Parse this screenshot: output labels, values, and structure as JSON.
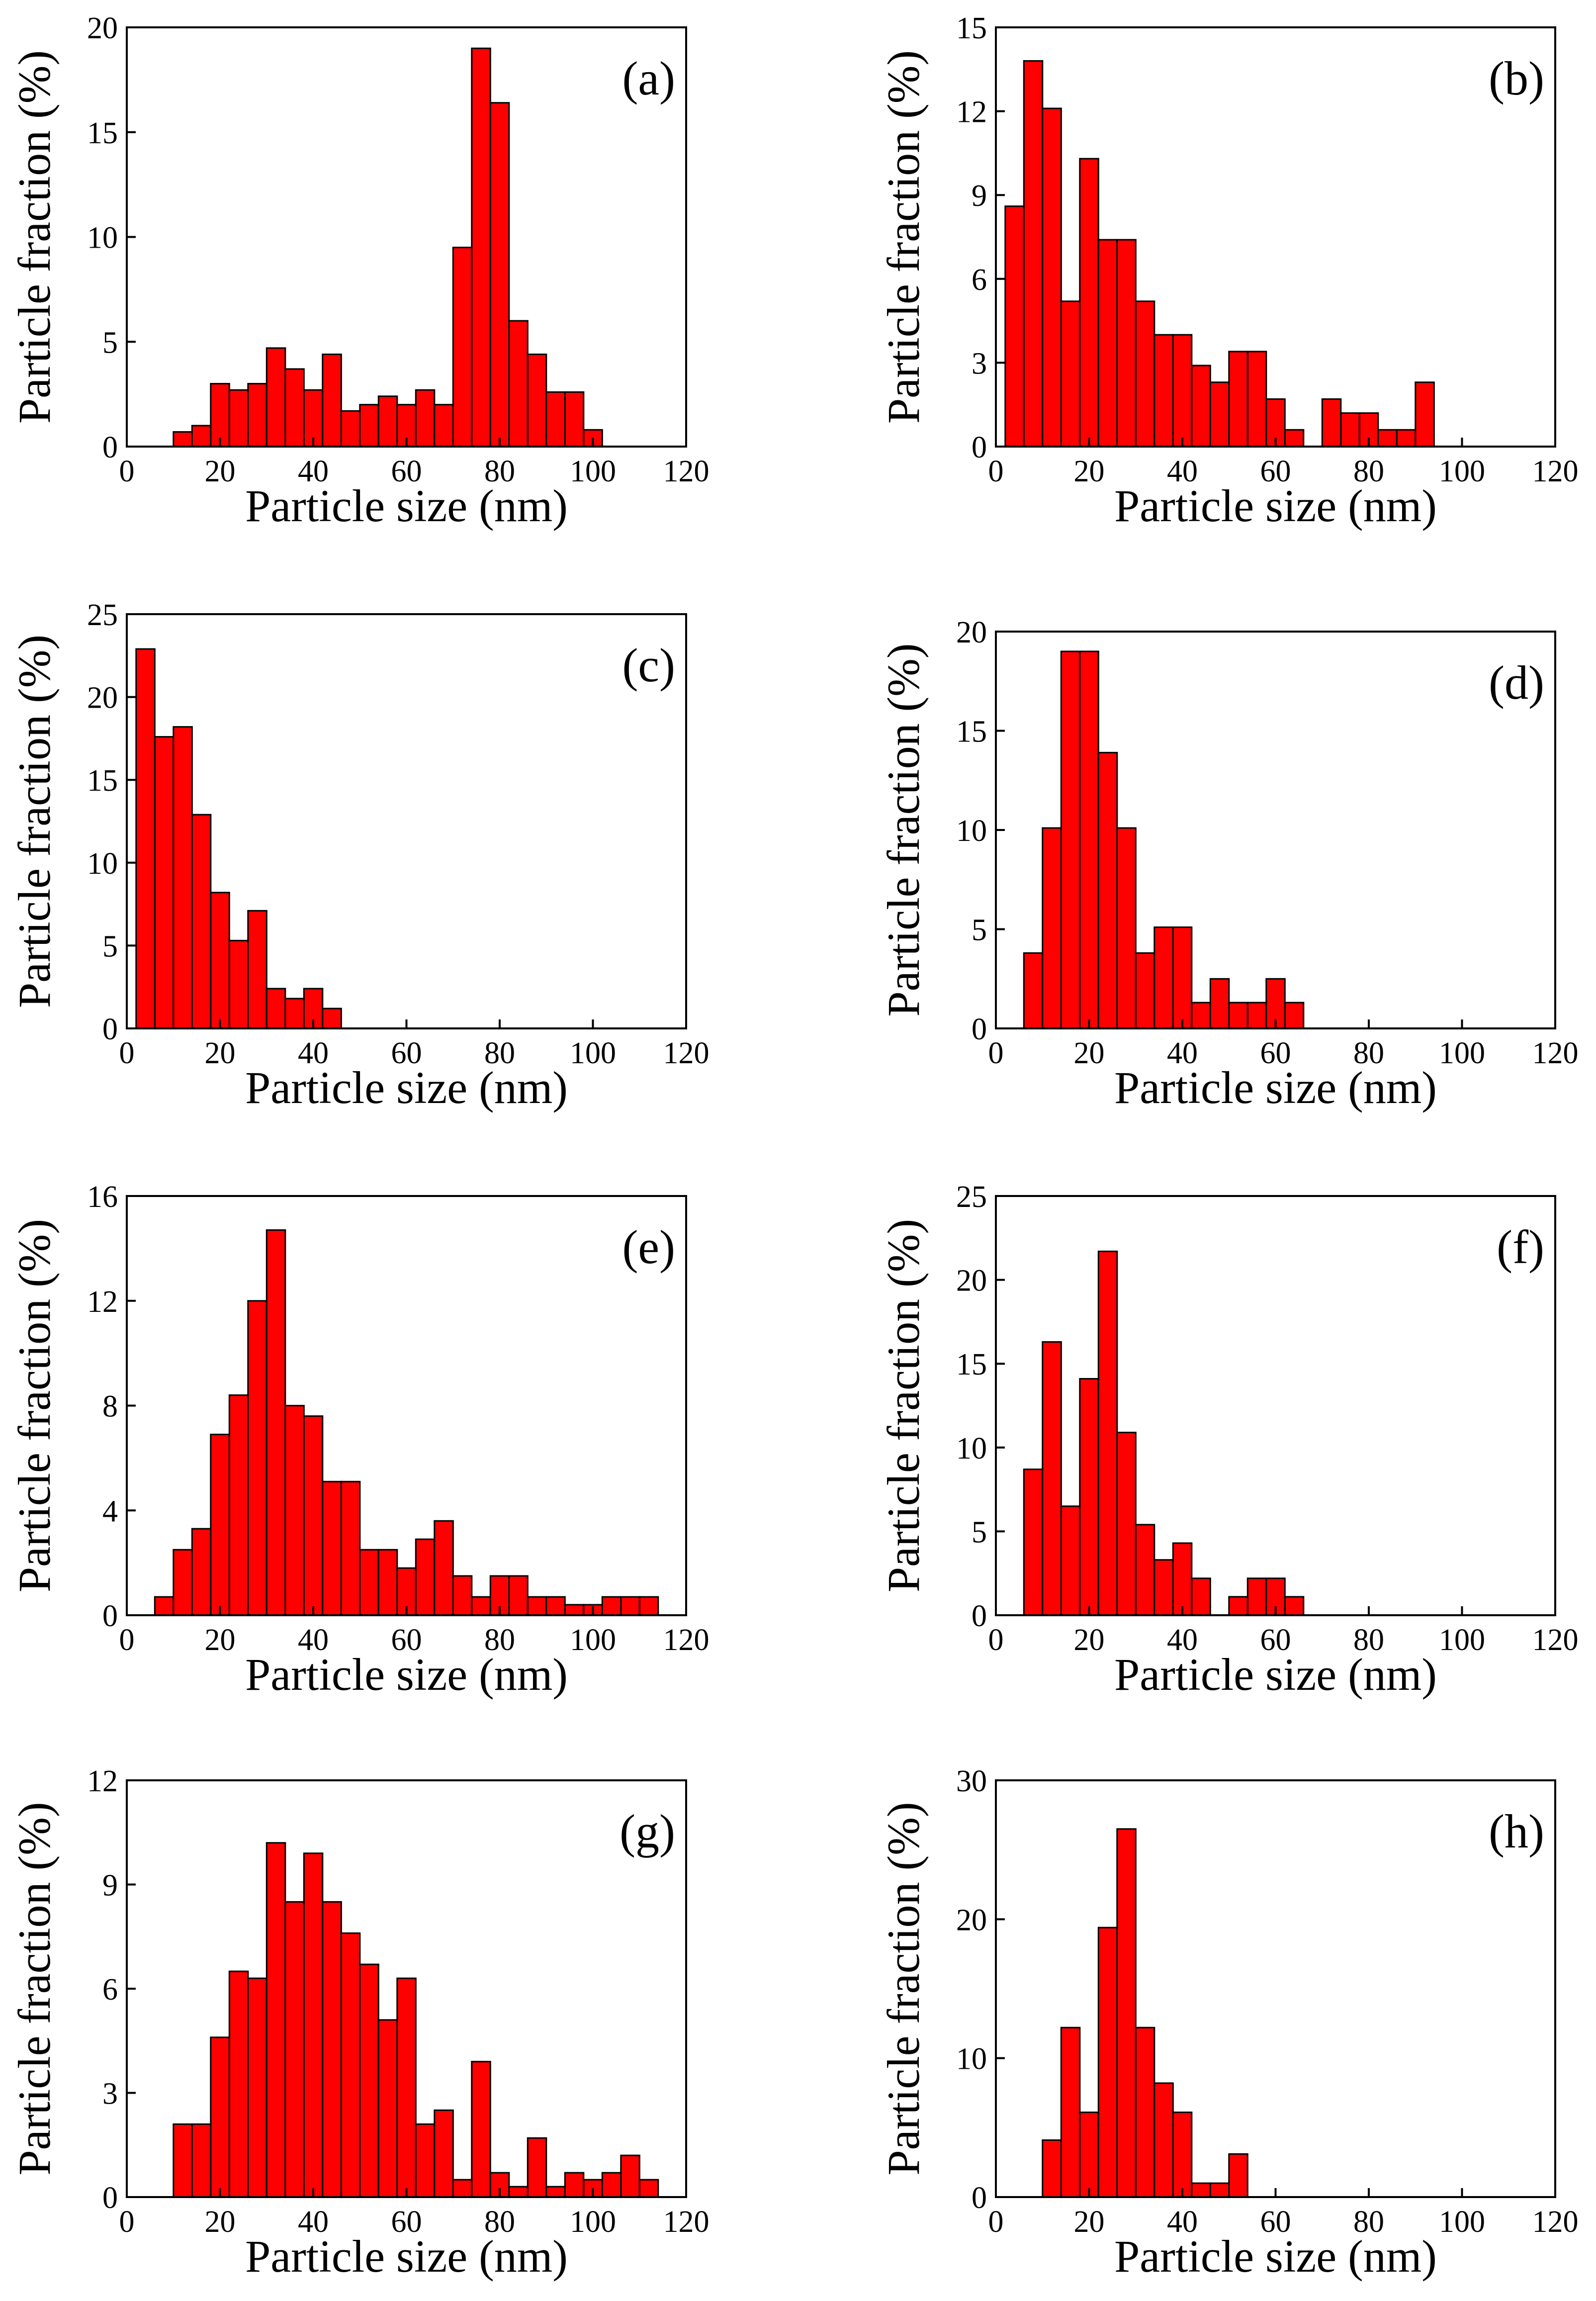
{
  "figure": {
    "colors": {
      "bar_fill": "#ff0000",
      "bar_edge": "#000000",
      "axis": "#000000"
    }
  },
  "chart_data": [
    {
      "type": "bar",
      "panel_label": "(a)",
      "xlabel": "Particle size (nm)",
      "ylabel": "Particle fraction (%)",
      "xlim": [
        0,
        120
      ],
      "ylim": [
        0,
        20
      ],
      "xticks": [
        0,
        20,
        40,
        60,
        80,
        100,
        120
      ],
      "yticks": [
        0,
        5,
        10,
        15,
        20
      ],
      "bin_width": 4,
      "bin_starts": [
        10,
        14,
        18,
        22,
        26,
        30,
        34,
        38,
        42,
        46,
        50,
        54,
        58,
        62,
        66,
        70,
        74,
        78,
        82,
        86,
        90,
        94,
        98
      ],
      "values": [
        0.7,
        1.0,
        3.0,
        2.7,
        3.0,
        4.7,
        3.7,
        2.7,
        4.4,
        1.7,
        2.0,
        2.4,
        2.0,
        2.7,
        2.0,
        9.5,
        19.0,
        16.4,
        6.0,
        4.4,
        2.6,
        2.6,
        0.8
      ]
    },
    {
      "type": "bar",
      "panel_label": "(b)",
      "xlabel": "Particle size (nm)",
      "ylabel": "Particle fraction (%)",
      "xlim": [
        0,
        120
      ],
      "ylim": [
        0,
        15
      ],
      "xticks": [
        0,
        20,
        40,
        60,
        80,
        100,
        120
      ],
      "yticks": [
        0,
        3,
        6,
        9,
        12,
        15
      ],
      "bin_width": 4,
      "bin_starts": [
        2,
        6,
        10,
        14,
        18,
        22,
        26,
        30,
        34,
        38,
        42,
        46,
        50,
        54,
        58,
        62,
        70,
        74,
        78,
        82,
        86,
        90
      ],
      "values": [
        8.6,
        13.8,
        12.1,
        5.2,
        10.3,
        7.4,
        7.4,
        5.2,
        4.0,
        4.0,
        2.9,
        2.3,
        3.4,
        3.4,
        1.7,
        0.6,
        1.7,
        1.2,
        1.2,
        0.6,
        0.6,
        2.3
      ]
    },
    {
      "type": "bar",
      "panel_label": "(c)",
      "xlabel": "Particle size (nm)",
      "ylabel": "Particle fraction (%)",
      "xlim": [
        0,
        120
      ],
      "ylim": [
        0,
        25
      ],
      "xticks": [
        0,
        20,
        40,
        60,
        80,
        100,
        120
      ],
      "yticks": [
        0,
        5,
        10,
        15,
        20,
        25
      ],
      "bin_width": 4,
      "bin_starts": [
        2,
        6,
        10,
        14,
        18,
        22,
        26,
        30,
        34,
        38,
        42
      ],
      "values": [
        22.9,
        17.6,
        18.2,
        12.9,
        8.2,
        5.3,
        7.1,
        2.4,
        1.8,
        2.4,
        1.2
      ]
    },
    {
      "type": "bar",
      "panel_label": "(d)",
      "xlabel": "Particle size (nm)",
      "ylabel": "Particle fraction (%)",
      "xlim": [
        0,
        120
      ],
      "ylim": [
        0,
        20
      ],
      "xticks": [
        0,
        20,
        40,
        60,
        80,
        100,
        120
      ],
      "yticks": [
        0,
        5,
        10,
        15,
        20
      ],
      "bin_width": 4,
      "bin_starts": [
        6,
        10,
        14,
        18,
        22,
        26,
        30,
        34,
        38,
        42,
        46,
        50,
        54,
        58,
        62
      ],
      "values": [
        3.8,
        10.1,
        19.0,
        19.0,
        13.9,
        10.1,
        3.8,
        5.1,
        5.1,
        1.3,
        2.5,
        1.3,
        1.3,
        2.5,
        1.3
      ]
    },
    {
      "type": "bar",
      "panel_label": "(e)",
      "xlabel": "Particle size (nm)",
      "ylabel": "Particle fraction (%)",
      "xlim": [
        0,
        120
      ],
      "ylim": [
        0,
        16
      ],
      "xticks": [
        0,
        20,
        40,
        60,
        80,
        100,
        120
      ],
      "yticks": [
        0,
        4,
        8,
        12,
        16
      ],
      "bin_width": 4,
      "bin_starts": [
        6,
        10,
        14,
        18,
        22,
        26,
        30,
        34,
        38,
        42,
        46,
        50,
        54,
        58,
        62,
        66,
        70,
        74,
        78,
        82,
        86,
        90,
        94,
        98,
        102,
        106,
        110
      ],
      "values": [
        0.7,
        2.5,
        3.3,
        6.9,
        8.4,
        12.0,
        14.7,
        8.0,
        7.6,
        5.1,
        5.1,
        2.5,
        2.5,
        1.8,
        2.9,
        3.6,
        1.5,
        0.7,
        1.5,
        1.5,
        0.7,
        0.7,
        0.4,
        0.4,
        0.7,
        0.7,
        0.7
      ]
    },
    {
      "type": "bar",
      "panel_label": "(f)",
      "xlabel": "Particle size (nm)",
      "ylabel": "Particle fraction (%)",
      "xlim": [
        0,
        120
      ],
      "ylim": [
        0,
        25
      ],
      "xticks": [
        0,
        20,
        40,
        60,
        80,
        100,
        120
      ],
      "yticks": [
        0,
        5,
        10,
        15,
        20,
        25
      ],
      "bin_width": 4,
      "bin_starts": [
        6,
        10,
        14,
        18,
        22,
        26,
        30,
        34,
        38,
        42,
        50,
        54,
        58,
        62
      ],
      "values": [
        8.7,
        16.3,
        6.5,
        14.1,
        21.7,
        10.9,
        5.4,
        3.3,
        4.3,
        2.2,
        1.1,
        2.2,
        2.2,
        1.1
      ]
    },
    {
      "type": "bar",
      "panel_label": "(g)",
      "xlabel": "Particle size (nm)",
      "ylabel": "Particle fraction (%)",
      "xlim": [
        0,
        120
      ],
      "ylim": [
        0,
        12
      ],
      "xticks": [
        0,
        20,
        40,
        60,
        80,
        100,
        120
      ],
      "yticks": [
        0,
        3,
        6,
        9,
        12
      ],
      "bin_width": 4,
      "bin_starts": [
        10,
        14,
        18,
        22,
        26,
        30,
        34,
        38,
        42,
        46,
        50,
        54,
        58,
        62,
        66,
        70,
        74,
        78,
        82,
        86,
        90,
        94,
        98,
        102,
        106,
        110
      ],
      "values": [
        2.1,
        2.1,
        4.6,
        6.5,
        6.3,
        10.2,
        8.5,
        9.9,
        8.5,
        7.6,
        6.7,
        5.1,
        6.3,
        2.1,
        2.5,
        0.5,
        3.9,
        0.7,
        0.3,
        1.7,
        0.3,
        0.7,
        0.5,
        0.7,
        1.2,
        0.5
      ]
    },
    {
      "type": "bar",
      "panel_label": "(h)",
      "xlabel": "Particle size (nm)",
      "ylabel": "Particle fraction (%)",
      "xlim": [
        0,
        120
      ],
      "ylim": [
        0,
        30
      ],
      "xticks": [
        0,
        20,
        40,
        60,
        80,
        100,
        120
      ],
      "yticks": [
        0,
        10,
        20,
        30
      ],
      "bin_width": 4,
      "bin_starts": [
        10,
        14,
        18,
        22,
        26,
        30,
        34,
        38,
        42,
        46,
        50
      ],
      "values": [
        4.1,
        12.2,
        6.1,
        19.4,
        26.5,
        12.2,
        8.2,
        6.1,
        1.0,
        1.0,
        3.1
      ]
    }
  ]
}
